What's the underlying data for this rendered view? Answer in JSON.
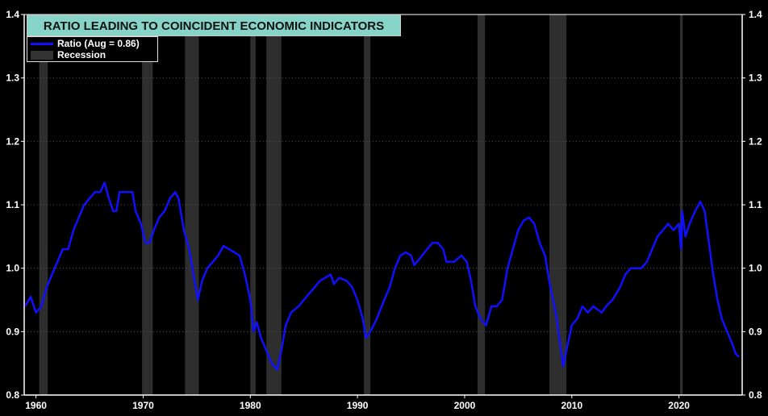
{
  "chart_data": {
    "type": "line",
    "title": "RATIO LEADING TO COINCIDENT ECONOMIC INDICATORS",
    "xlabel": "",
    "ylabel": "",
    "xlim": [
      1958.9,
      2025.9
    ],
    "ylim": [
      0.8,
      1.4
    ],
    "yticks": [
      "0.8",
      "0.9",
      "1.0",
      "1.1",
      "1.2",
      "1.3",
      "1.4"
    ],
    "yticks_values": [
      0.8,
      0.9,
      1.0,
      1.1,
      1.2,
      1.3,
      1.4
    ],
    "xticks": [
      "1960",
      "1970",
      "1980",
      "1990",
      "2000",
      "2010",
      "2020"
    ],
    "xticks_values": [
      1960,
      1970,
      1980,
      1990,
      2000,
      2010,
      2020
    ],
    "grid": true,
    "legend_position": "top-left",
    "legend": [
      "Ratio  (Aug = 0.86)",
      "Recession"
    ],
    "colors": {
      "series": "#1010ff",
      "recession": "#2e2e2e",
      "title_bg": "#86d3c8"
    },
    "recessions": [
      [
        1960.3,
        1961.1
      ],
      [
        1969.9,
        1970.9
      ],
      [
        1973.9,
        1975.2
      ],
      [
        1980.0,
        1980.5
      ],
      [
        1981.5,
        1982.9
      ],
      [
        1990.6,
        1991.2
      ],
      [
        2001.2,
        2001.9
      ],
      [
        2007.9,
        2009.5
      ],
      [
        2020.1,
        2020.35
      ]
    ],
    "series": [
      {
        "name": "Ratio",
        "x": [
          1959.0,
          1959.5,
          1960.0,
          1960.5,
          1961.0,
          1961.5,
          1962.0,
          1962.5,
          1963.0,
          1963.5,
          1964.0,
          1964.5,
          1965.0,
          1965.5,
          1966.0,
          1966.4,
          1966.8,
          1967.2,
          1967.5,
          1967.8,
          1968.5,
          1969.0,
          1969.3,
          1969.8,
          1970.2,
          1970.6,
          1971.0,
          1971.5,
          1972.0,
          1972.5,
          1973.0,
          1973.3,
          1973.8,
          1974.3,
          1974.8,
          1975.1,
          1975.5,
          1976.0,
          1976.5,
          1977.0,
          1977.5,
          1978.0,
          1978.5,
          1979.0,
          1979.5,
          1980.0,
          1980.3,
          1980.6,
          1981.0,
          1981.5,
          1982.0,
          1982.5,
          1982.9,
          1983.3,
          1983.8,
          1984.5,
          1985.0,
          1985.5,
          1986.0,
          1986.5,
          1987.0,
          1987.5,
          1987.8,
          1988.3,
          1989.0,
          1989.5,
          1990.0,
          1990.5,
          1990.8,
          1991.2,
          1991.8,
          1992.5,
          1993.0,
          1993.5,
          1994.0,
          1994.5,
          1995.0,
          1995.3,
          1995.8,
          1996.5,
          1997.0,
          1997.5,
          1998.0,
          1998.3,
          1999.0,
          1999.7,
          2000.2,
          2000.6,
          2001.0,
          2001.5,
          2002.0,
          2002.5,
          2003.0,
          2003.5,
          2004.0,
          2004.5,
          2005.0,
          2005.5,
          2006.0,
          2006.5,
          2007.0,
          2007.5,
          2008.0,
          2008.5,
          2009.0,
          2009.2,
          2009.5,
          2010.0,
          2010.5,
          2011.0,
          2011.5,
          2012.0,
          2012.8,
          2013.2,
          2013.8,
          2014.5,
          2015.0,
          2015.5,
          2016.0,
          2016.5,
          2017.0,
          2017.5,
          2018.0,
          2018.5,
          2019.0,
          2019.5,
          2020.0,
          2020.2,
          2020.3,
          2020.6,
          2021.0,
          2021.5,
          2022.0,
          2022.4,
          2022.8,
          2023.2,
          2023.6,
          2024.0,
          2024.5,
          2025.0,
          2025.3,
          2025.6
        ],
        "values": [
          0.94,
          0.955,
          0.93,
          0.94,
          0.97,
          0.99,
          1.01,
          1.03,
          1.03,
          1.06,
          1.08,
          1.1,
          1.11,
          1.12,
          1.12,
          1.135,
          1.11,
          1.09,
          1.09,
          1.12,
          1.12,
          1.12,
          1.09,
          1.07,
          1.04,
          1.04,
          1.06,
          1.08,
          1.09,
          1.11,
          1.12,
          1.11,
          1.06,
          1.03,
          0.98,
          0.95,
          0.98,
          1.0,
          1.01,
          1.02,
          1.035,
          1.03,
          1.025,
          1.02,
          0.99,
          0.95,
          0.9,
          0.915,
          0.89,
          0.87,
          0.85,
          0.84,
          0.87,
          0.91,
          0.93,
          0.94,
          0.95,
          0.96,
          0.97,
          0.98,
          0.985,
          0.99,
          0.975,
          0.985,
          0.98,
          0.97,
          0.95,
          0.92,
          0.89,
          0.9,
          0.92,
          0.95,
          0.97,
          1.0,
          1.02,
          1.025,
          1.02,
          1.005,
          1.015,
          1.03,
          1.04,
          1.04,
          1.03,
          1.01,
          1.01,
          1.02,
          1.01,
          0.98,
          0.94,
          0.92,
          0.91,
          0.94,
          0.94,
          0.95,
          1.0,
          1.03,
          1.06,
          1.075,
          1.08,
          1.07,
          1.04,
          1.02,
          0.97,
          0.93,
          0.87,
          0.845,
          0.87,
          0.91,
          0.92,
          0.94,
          0.93,
          0.94,
          0.93,
          0.94,
          0.95,
          0.97,
          0.99,
          1.0,
          1.0,
          1.0,
          1.01,
          1.03,
          1.05,
          1.06,
          1.07,
          1.06,
          1.07,
          1.03,
          1.09,
          1.05,
          1.07,
          1.09,
          1.105,
          1.09,
          1.04,
          0.99,
          0.95,
          0.92,
          0.9,
          0.88,
          0.865,
          0.86
        ]
      }
    ]
  }
}
